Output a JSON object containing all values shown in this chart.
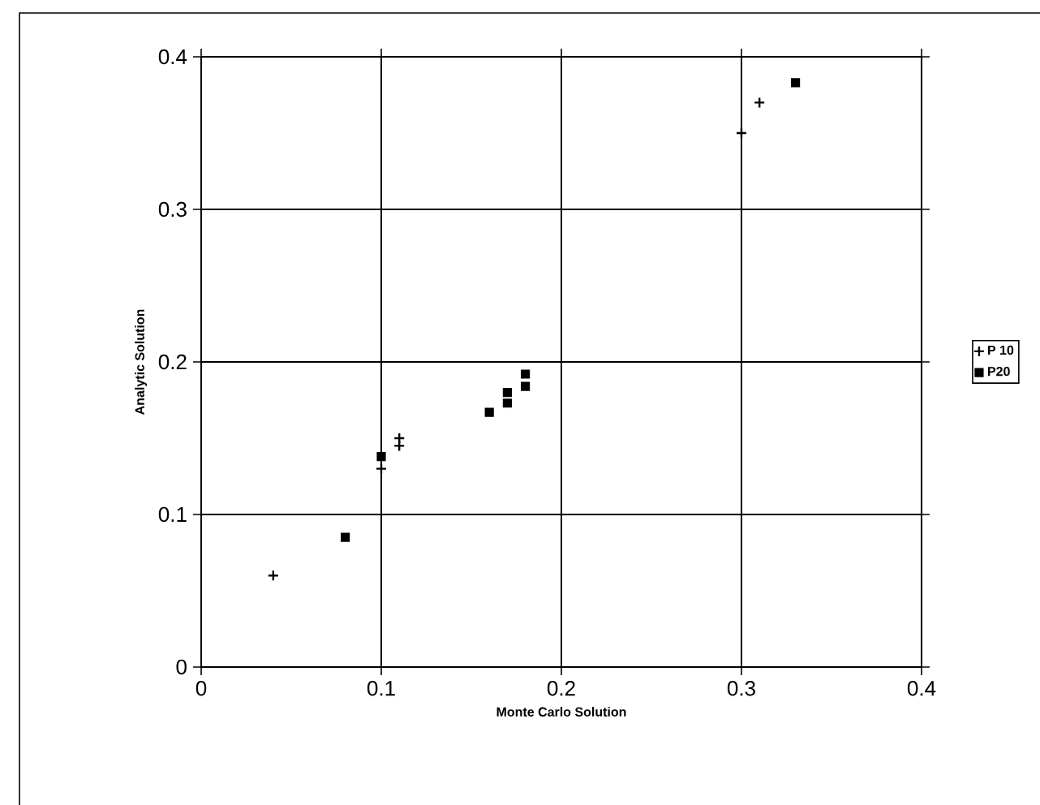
{
  "chart_data": {
    "type": "scatter",
    "xlabel": "Monte Carlo Solution",
    "ylabel": "Analytic Solution",
    "xlim": [
      0,
      0.4
    ],
    "ylim": [
      0,
      0.4
    ],
    "xticks": [
      0,
      0.1,
      0.2,
      0.3,
      0.4
    ],
    "yticks": [
      0,
      0.1,
      0.2,
      0.3,
      0.4
    ],
    "grid": true,
    "legend": "right",
    "series": [
      {
        "name": "P 10",
        "color": "#000000",
        "marker": "cross",
        "x": [
          0.04,
          0.1,
          0.11,
          0.11,
          0.3,
          0.31
        ],
        "values": [
          0.06,
          0.13,
          0.145,
          0.15,
          0.35,
          0.37
        ]
      },
      {
        "name": "P20",
        "color": "#000000",
        "marker": "square",
        "x": [
          0.08,
          0.1,
          0.16,
          0.17,
          0.17,
          0.18,
          0.18,
          0.33
        ],
        "values": [
          0.085,
          0.138,
          0.167,
          0.173,
          0.18,
          0.184,
          0.192,
          0.383
        ]
      }
    ]
  }
}
